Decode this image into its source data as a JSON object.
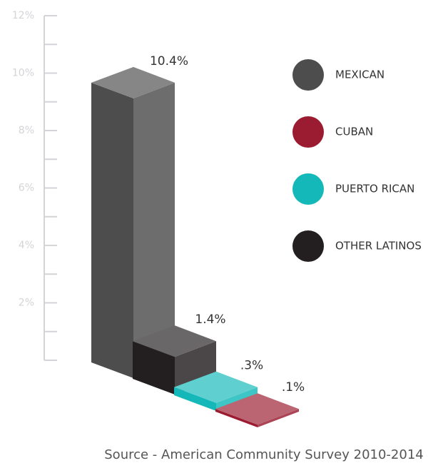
{
  "chart_data": {
    "type": "bar3d",
    "source": "Source - American Community Survey 2010-2014",
    "categories": [
      "MEXICAN",
      "CUBAN",
      "PUERTO RICAN",
      "OTHER LATINOS"
    ],
    "values": [
      10.4,
      0.1,
      0.3,
      1.4
    ],
    "value_labels": [
      "10.4%",
      ".1%",
      ".3%",
      "1.4%"
    ],
    "colors": [
      "#4d4d4d",
      "#9b1b30",
      "#14b8b8",
      "#231f20"
    ],
    "ylim": [
      0,
      12
    ],
    "yticks": [
      {
        "value": 2,
        "label": "2%"
      },
      {
        "value": 4,
        "label": "4%"
      },
      {
        "value": 6,
        "label": "6%"
      },
      {
        "value": 8,
        "label": "8%"
      },
      {
        "value": 10,
        "label": "10%"
      },
      {
        "value": 12,
        "label": "12%"
      }
    ],
    "minor_yticks": [
      0,
      1,
      3,
      5,
      7,
      9,
      11
    ]
  }
}
